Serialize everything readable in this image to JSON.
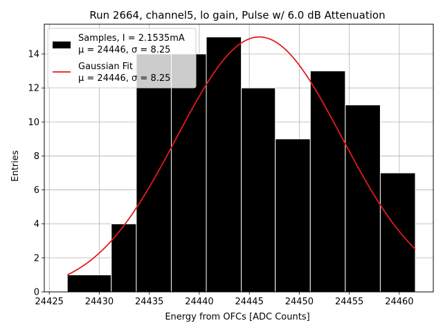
{
  "chart_data": {
    "type": "bar",
    "title": "Run 2664, channel5, lo gain, Pulse w/ 6.0 dB Attenuation",
    "xlabel": "Energy from OFCs [ADC Counts]",
    "ylabel": "Entries",
    "xlim": [
      24424.5,
      24463.4
    ],
    "ylim": [
      0,
      15.75
    ],
    "xticks": [
      24425,
      24430,
      24435,
      24440,
      24445,
      24450,
      24455,
      24460
    ],
    "yticks": [
      0,
      2,
      4,
      6,
      8,
      10,
      12,
      14
    ],
    "grid": true,
    "legend_position": "top-left",
    "bins": [
      {
        "x0": 24426.8,
        "x1": 24431.2,
        "value": 1
      },
      {
        "x0": 24431.2,
        "x1": 24433.7,
        "value": 4
      },
      {
        "x0": 24433.7,
        "x1": 24437.2,
        "value": 14
      },
      {
        "x0": 24437.2,
        "x1": 24440.7,
        "value": 14
      },
      {
        "x0": 24440.7,
        "x1": 24444.2,
        "value": 15
      },
      {
        "x0": 24444.2,
        "x1": 24447.6,
        "value": 12
      },
      {
        "x0": 24447.6,
        "x1": 24451.1,
        "value": 9
      },
      {
        "x0": 24451.1,
        "x1": 24454.6,
        "value": 13
      },
      {
        "x0": 24454.6,
        "x1": 24458.1,
        "value": 11
      },
      {
        "x0": 24458.1,
        "x1": 24461.6,
        "value": 7
      }
    ],
    "series": [
      {
        "name": "Samples, I = 2.1535mA",
        "name_line2": "μ = 24446, σ = 8.25",
        "kind": "histogram",
        "color": "#000000"
      },
      {
        "name": "Gaussian Fit",
        "name_line2": "μ = 24446, σ = 8.25",
        "kind": "line",
        "color": "#e41a1c",
        "mu": 24446,
        "sigma": 8.25,
        "amplitude": 15,
        "x_range": [
          24426.8,
          24461.6
        ]
      }
    ]
  }
}
